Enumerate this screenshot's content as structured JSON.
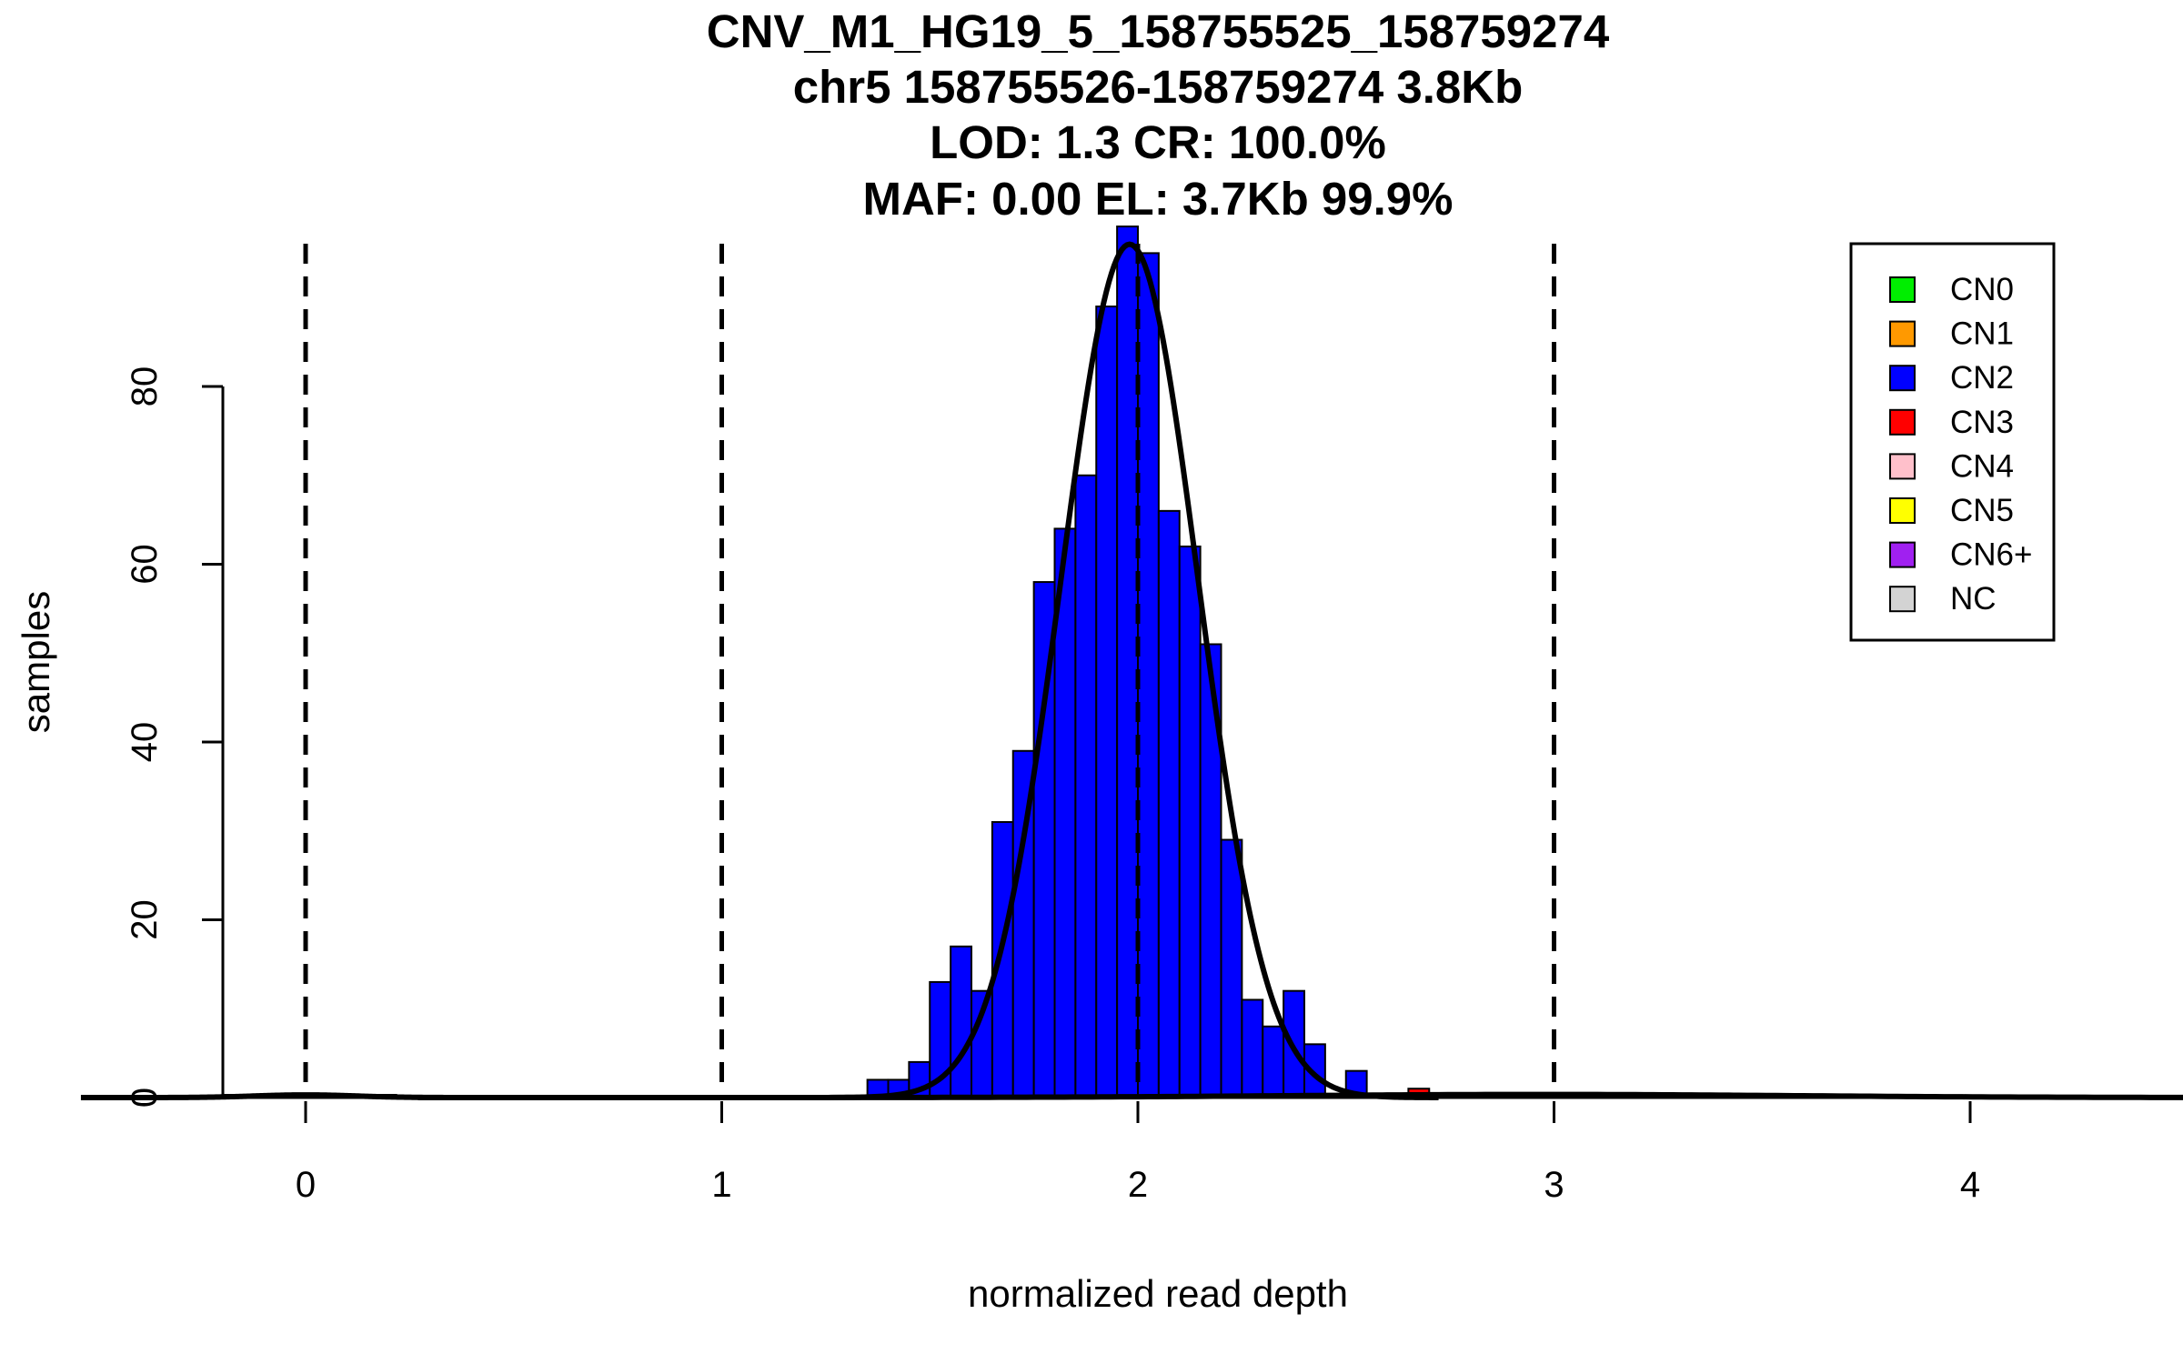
{
  "chart_data": {
    "type": "bar",
    "title_lines": [
      "CNV_M1_HG19_5_158755525_158759274",
      "chr5 158755526-158759274 3.8Kb",
      "LOD: 1.3 CR: 100.0%",
      "MAF: 0.00 EL: 3.7Kb 99.9%"
    ],
    "xlabel": "normalized read depth",
    "ylabel": "samples",
    "xlim": [
      -0.2,
      4.13
    ],
    "ylim": [
      0,
      98
    ],
    "x_ticks": [
      0,
      1,
      2,
      3,
      4
    ],
    "x_tick_labels": [
      "0",
      "1",
      "2",
      "3",
      "4"
    ],
    "y_ticks": [
      0,
      20,
      40,
      60,
      80
    ],
    "y_tick_labels": [
      "0",
      "20",
      "40",
      "60",
      "80"
    ],
    "bin_width": 0.05,
    "dashed_lines_x": [
      0,
      1,
      2,
      3
    ],
    "bars": [
      {
        "x0": 1.35,
        "count": 2,
        "cn": "CN2"
      },
      {
        "x0": 1.4,
        "count": 2,
        "cn": "CN2"
      },
      {
        "x0": 1.45,
        "count": 4,
        "cn": "CN2"
      },
      {
        "x0": 1.5,
        "count": 13,
        "cn": "CN2"
      },
      {
        "x0": 1.55,
        "count": 17,
        "cn": "CN2"
      },
      {
        "x0": 1.6,
        "count": 12,
        "cn": "CN2"
      },
      {
        "x0": 1.65,
        "count": 31,
        "cn": "CN2"
      },
      {
        "x0": 1.7,
        "count": 39,
        "cn": "CN2"
      },
      {
        "x0": 1.75,
        "count": 58,
        "cn": "CN2"
      },
      {
        "x0": 1.8,
        "count": 64,
        "cn": "CN2"
      },
      {
        "x0": 1.85,
        "count": 70,
        "cn": "CN2"
      },
      {
        "x0": 1.9,
        "count": 89,
        "cn": "CN2"
      },
      {
        "x0": 1.95,
        "count": 98,
        "cn": "CN2"
      },
      {
        "x0": 2.0,
        "count": 95,
        "cn": "CN2"
      },
      {
        "x0": 2.05,
        "count": 66,
        "cn": "CN2"
      },
      {
        "x0": 2.1,
        "count": 62,
        "cn": "CN2"
      },
      {
        "x0": 2.15,
        "count": 51,
        "cn": "CN2"
      },
      {
        "x0": 2.2,
        "count": 29,
        "cn": "CN2"
      },
      {
        "x0": 2.25,
        "count": 11,
        "cn": "CN2"
      },
      {
        "x0": 2.3,
        "count": 8,
        "cn": "CN2"
      },
      {
        "x0": 2.35,
        "count": 12,
        "cn": "CN2"
      },
      {
        "x0": 2.4,
        "count": 6,
        "cn": "CN2"
      },
      {
        "x0": 2.45,
        "count": 0,
        "cn": "CN2"
      },
      {
        "x0": 2.5,
        "count": 3,
        "cn": "CN2"
      },
      {
        "x0": 2.65,
        "count": 1,
        "cn": "CN3"
      }
    ],
    "fit_curves": [
      {
        "name": "CN2 fit",
        "mean": 1.98,
        "sd": 0.165,
        "peak": 96
      },
      {
        "name": "CN3 tail",
        "mean": 2.97,
        "sd": 0.6,
        "peak": 0.35
      },
      {
        "name": "CN0 tail",
        "mean": 0.0,
        "sd": 0.12,
        "peak": 0.3
      }
    ],
    "background_line_segments": [
      {
        "x0": -0.2,
        "x1": 0.22,
        "y": 0.25
      },
      {
        "x0": 0.5,
        "x1": 1.35,
        "y": 0.15
      },
      {
        "x0": 2.72,
        "x1": 3.83,
        "y": 0.25
      }
    ],
    "legend": {
      "position": "top-right",
      "entries": [
        {
          "label": "CN0",
          "color": "#00ee00"
        },
        {
          "label": "CN1",
          "color": "#ff9900"
        },
        {
          "label": "CN2",
          "color": "#0000ff"
        },
        {
          "label": "CN3",
          "color": "#ff0000"
        },
        {
          "label": "CN4",
          "color": "#ffc0cb"
        },
        {
          "label": "CN5",
          "color": "#ffff00"
        },
        {
          "label": "CN6+",
          "color": "#a020f0"
        },
        {
          "label": "NC",
          "color": "#d3d3d3"
        }
      ]
    }
  }
}
